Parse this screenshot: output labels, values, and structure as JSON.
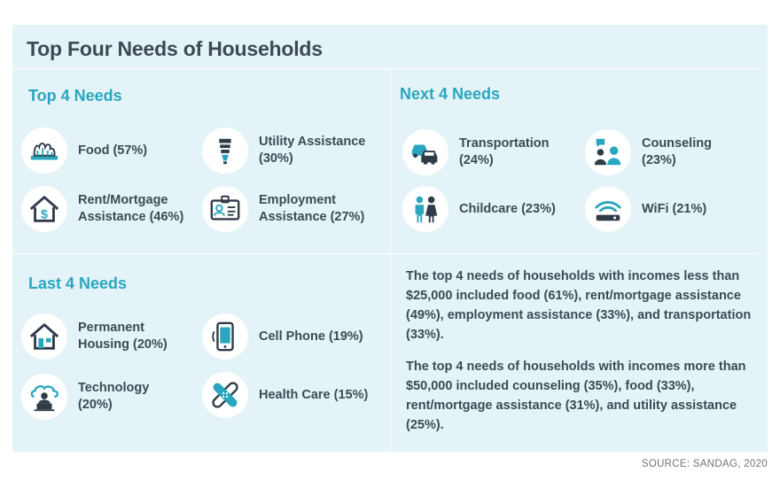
{
  "title": "Top Four Needs of Households",
  "sections": {
    "top": {
      "title": "Top 4 Needs",
      "items": [
        {
          "label": "Food (57%)",
          "icon": "food-icon"
        },
        {
          "label": "Utility Assistance\n(30%)",
          "icon": "lightbulb-icon"
        },
        {
          "label": "Rent/Mortgage\nAssistance (46%)",
          "icon": "house-dollar-icon"
        },
        {
          "label": "Employment\nAssistance (27%)",
          "icon": "id-badge-icon"
        }
      ]
    },
    "next": {
      "title": "Next 4 Needs",
      "items": [
        {
          "label": "Transportation\n(24%)",
          "icon": "cars-icon"
        },
        {
          "label": "Counseling\n(23%)",
          "icon": "counseling-icon"
        },
        {
          "label": "Childcare (23%)",
          "icon": "children-icon"
        },
        {
          "label": "WiFi (21%)",
          "icon": "wifi-router-icon"
        }
      ]
    },
    "last": {
      "title": "Last 4 Needs",
      "items": [
        {
          "label": "Permanent\nHousing (20%)",
          "icon": "house-icon"
        },
        {
          "label": "Cell Phone (19%)",
          "icon": "cell-phone-icon"
        },
        {
          "label": "Technology\n(20%)",
          "icon": "cloud-computer-icon"
        },
        {
          "label": "Health Care (15%)",
          "icon": "bandage-icon"
        }
      ]
    }
  },
  "paragraphs": [
    "The top 4 needs of households with incomes less than $25,000 included food (61%), rent/mortgage assistance (49%), employment assistance (33%), and transportation (33%).",
    "The top 4 needs of households with incomes more than $50,000 included counseling (35%), food (33%), rent/mortgage assistance (31%), and utility assistance (25%)."
  ],
  "source": "SOURCE: SANDAG, 2020",
  "colors": {
    "panel_bg": "#e4f3f7",
    "section_title": "#2aa7bf",
    "text": "#3d4a54",
    "icon_dark": "#2f3c48",
    "icon_teal": "#2aa7bf"
  }
}
